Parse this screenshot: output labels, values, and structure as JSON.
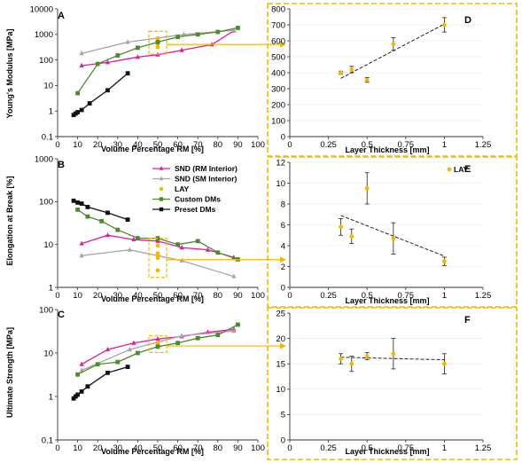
{
  "colors": {
    "SND (RM Interior)": "#e619a6",
    "SND (SM Interior)": "#a6a6a6",
    "LAY": "#f5b800",
    "Custom DMs": "#4d8a2e",
    "Preset DMs": "#111111",
    "connector": "#f5b800",
    "frame": "#f5b800"
  },
  "chart_data": [
    {
      "id": "A",
      "type": "line",
      "panel_label": "A",
      "xlabel": "Volume Percentage RM [%]",
      "ylabel": "Young's Modulus [MPa]",
      "xlim": [
        0,
        100
      ],
      "ylim": [
        0.1,
        10000
      ],
      "yscale": "log",
      "xticks": [
        "0",
        "10",
        "20",
        "30",
        "40",
        "50",
        "60",
        "70",
        "80",
        "90",
        "100"
      ],
      "yticks": [
        "0.1",
        "1",
        "10",
        "100",
        "1000",
        "10000"
      ],
      "series": [
        {
          "name": "SND (RM Interior)",
          "marker": "triangle",
          "x": [
            12,
            25,
            40,
            50,
            62,
            77,
            88
          ],
          "y": [
            60,
            80,
            130,
            160,
            240,
            400,
            1400
          ]
        },
        {
          "name": "SND (SM Interior)",
          "marker": "triangle",
          "x": [
            12,
            35,
            63,
            88
          ],
          "y": [
            180,
            500,
            1000,
            1450
          ]
        },
        {
          "name": "LAY",
          "marker": "circle",
          "x": [
            50,
            50,
            50,
            50,
            50
          ],
          "y": [
            320,
            430,
            560,
            620,
            700
          ]
        },
        {
          "name": "Custom DMs",
          "marker": "square",
          "x": [
            10,
            20,
            30,
            40,
            50,
            60,
            70,
            80,
            90
          ],
          "y": [
            5,
            70,
            150,
            300,
            500,
            800,
            1000,
            1250,
            1800
          ]
        },
        {
          "name": "Preset DMs",
          "marker": "square",
          "x": [
            8,
            9,
            10,
            12,
            16,
            25,
            35
          ],
          "y": [
            0.7,
            0.8,
            0.9,
            1.1,
            2,
            6.5,
            30
          ]
        }
      ]
    },
    {
      "id": "B",
      "type": "line",
      "panel_label": "B",
      "xlabel": "Volume Percentage RM [%]",
      "ylabel": "Elongation at Break [%]",
      "xlim": [
        0,
        100
      ],
      "ylim": [
        1,
        1000
      ],
      "yscale": "log",
      "xticks": [
        "0",
        "10",
        "20",
        "30",
        "40",
        "50",
        "60",
        "70",
        "80",
        "90",
        "100"
      ],
      "yticks": [
        "1",
        "10",
        "100",
        "1000"
      ],
      "legend": [
        "SND (RM Interior)",
        "SND (SM Interior)",
        "LAY",
        "Custom DMs",
        "Preset DMs"
      ],
      "series": [
        {
          "name": "SND (RM Interior)",
          "marker": "triangle",
          "x": [
            12,
            25,
            38,
            50,
            62,
            75,
            88
          ],
          "y": [
            10.5,
            16.5,
            13,
            12,
            8.5,
            7.5,
            5
          ]
        },
        {
          "name": "SND (SM Interior)",
          "marker": "triangle",
          "x": [
            12,
            36,
            62,
            88
          ],
          "y": [
            5.5,
            7.5,
            4.2,
            1.8
          ]
        },
        {
          "name": "LAY",
          "marker": "circle",
          "x": [
            50,
            50,
            50,
            50,
            50
          ],
          "y": [
            2.5,
            4.9,
            5.8,
            6.2,
            9.5
          ]
        },
        {
          "name": "Custom DMs",
          "marker": "square",
          "x": [
            10,
            15,
            22,
            30,
            40,
            50,
            60,
            70,
            80,
            90
          ],
          "y": [
            65,
            45,
            35,
            22,
            14,
            14,
            10,
            12,
            6.5,
            4.5
          ]
        },
        {
          "name": "Preset DMs",
          "marker": "square",
          "x": [
            8,
            10,
            12,
            15,
            25,
            35
          ],
          "y": [
            105,
            95,
            90,
            75,
            55,
            38
          ]
        }
      ]
    },
    {
      "id": "C",
      "type": "line",
      "panel_label": "C",
      "xlabel": "Volume Percentage RM [%]",
      "ylabel": "Ultimate Strength [MPa]",
      "xlim": [
        0,
        100
      ],
      "ylim": [
        0.1,
        100
      ],
      "yscale": "log",
      "xticks": [
        "0",
        "10",
        "20",
        "30",
        "40",
        "50",
        "60",
        "70",
        "80",
        "90",
        "100"
      ],
      "yticks": [
        "0.1",
        "1",
        "10",
        "100"
      ],
      "series": [
        {
          "name": "SND (RM Interior)",
          "marker": "triangle",
          "x": [
            12,
            25,
            38,
            50,
            62,
            75,
            88
          ],
          "y": [
            5.5,
            12,
            17,
            21,
            24,
            30,
            35
          ]
        },
        {
          "name": "SND (SM Interior)",
          "marker": "triangle",
          "x": [
            12,
            36,
            62,
            88
          ],
          "y": [
            4,
            12,
            25,
            32
          ]
        },
        {
          "name": "LAY",
          "marker": "circle",
          "x": [
            50,
            50,
            50,
            50,
            50
          ],
          "y": [
            15,
            15.5,
            16,
            16.5,
            17
          ]
        },
        {
          "name": "Custom DMs",
          "marker": "square",
          "x": [
            10,
            20,
            30,
            40,
            50,
            60,
            70,
            80,
            90
          ],
          "y": [
            3.2,
            5.5,
            6.2,
            10,
            14,
            17,
            22,
            26,
            45
          ]
        },
        {
          "name": "Preset DMs",
          "marker": "square",
          "x": [
            8,
            9,
            10,
            12,
            15,
            25,
            35
          ],
          "y": [
            0.9,
            1.0,
            1.1,
            1.3,
            1.7,
            3.5,
            4.8
          ]
        }
      ]
    },
    {
      "id": "D",
      "type": "scatter",
      "panel_label": "D",
      "xlabel": "Layer Thickness [mm]",
      "ylabel": "",
      "xlim": [
        0,
        1.25
      ],
      "ylim": [
        0,
        800
      ],
      "xticks": [
        "0",
        "0.25",
        "0.5",
        "0.75",
        "1",
        "1.25"
      ],
      "yticks": [
        "0",
        "100",
        "200",
        "300",
        "400",
        "500",
        "600",
        "700",
        "800"
      ],
      "series": [
        {
          "name": "LAY",
          "x": [
            0.33,
            0.4,
            0.5,
            0.67,
            1.0
          ],
          "y": [
            400,
            420,
            355,
            580,
            700
          ],
          "yerr": [
            10,
            20,
            15,
            40,
            45
          ]
        }
      ],
      "trendline": {
        "x": [
          0.33,
          1.0
        ],
        "y": [
          365,
          705
        ]
      }
    },
    {
      "id": "E",
      "type": "scatter",
      "panel_label": "E",
      "xlabel": "Layer Thickness [mm]",
      "ylabel": "",
      "xlim": [
        0,
        1.25
      ],
      "ylim": [
        0,
        12
      ],
      "xticks": [
        "0",
        "0.25",
        "0.5",
        "0.75",
        "1",
        "1.25"
      ],
      "yticks": [
        "0",
        "2",
        "4",
        "6",
        "8",
        "10",
        "12"
      ],
      "legend": [
        "LAY"
      ],
      "series": [
        {
          "name": "LAY",
          "x": [
            0.33,
            0.4,
            0.5,
            0.67,
            1.0
          ],
          "y": [
            5.8,
            4.9,
            9.5,
            4.7,
            2.5
          ],
          "yerr": [
            0.8,
            0.7,
            1.5,
            1.5,
            0.4
          ]
        }
      ],
      "trendline": {
        "x": [
          0.33,
          1.0
        ],
        "y": [
          6.9,
          3.0
        ]
      }
    },
    {
      "id": "F",
      "type": "scatter",
      "panel_label": "F",
      "xlabel": "Layer Thickness [mm]",
      "ylabel": "",
      "xlim": [
        0,
        1.25
      ],
      "ylim": [
        0,
        25
      ],
      "xticks": [
        "0",
        "0.25",
        "0.5",
        "0.75",
        "1",
        "1.25"
      ],
      "yticks": [
        "0",
        "5",
        "10",
        "15",
        "20",
        "25"
      ],
      "series": [
        {
          "name": "LAY",
          "x": [
            0.33,
            0.4,
            0.5,
            0.67,
            1.0
          ],
          "y": [
            16,
            15,
            16.5,
            17,
            15
          ],
          "yerr": [
            1,
            1.5,
            0.7,
            3,
            2
          ]
        }
      ],
      "trendline": {
        "x": [
          0.33,
          1.0
        ],
        "y": [
          16.3,
          15.8
        ]
      }
    }
  ]
}
